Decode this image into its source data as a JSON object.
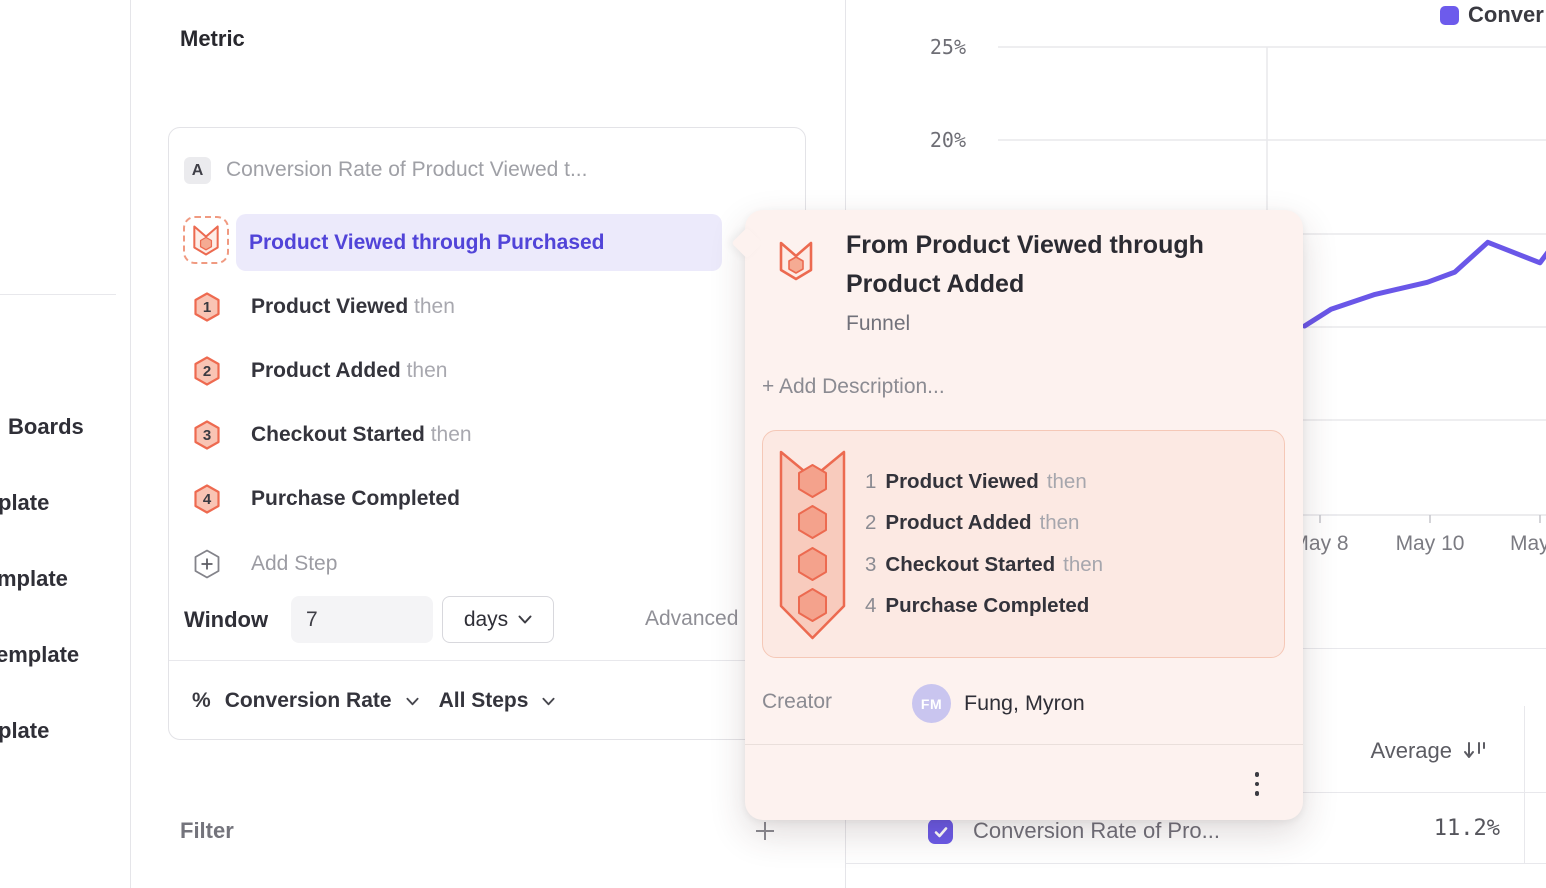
{
  "sidebar": {
    "items": [
      {
        "label": "Boards"
      },
      {
        "label": "plate"
      },
      {
        "label": "mplate"
      },
      {
        "label": "emplate"
      },
      {
        "label": "plate"
      }
    ]
  },
  "metric_panel": {
    "title": "Metric",
    "series": {
      "badge": "A",
      "name": "Conversion Rate of Product Viewed t..."
    },
    "funnel": {
      "selected_name": "Product Viewed through Purchased",
      "steps": [
        {
          "num": "1",
          "name": "Product Viewed",
          "connector": "then"
        },
        {
          "num": "2",
          "name": "Product Added",
          "connector": "then"
        },
        {
          "num": "3",
          "name": "Checkout Started",
          "connector": "then"
        },
        {
          "num": "4",
          "name": "Purchase Completed",
          "connector": ""
        }
      ],
      "add_step": "Add Step"
    },
    "window": {
      "label": "Window",
      "value": "7",
      "unit": "days"
    },
    "advanced": "Advanced",
    "measurement": {
      "prefix": "%",
      "type": "Conversion Rate",
      "scope": "All Steps"
    },
    "filter": {
      "label": "Filter"
    }
  },
  "popover": {
    "title": "From Product Viewed through Product Added",
    "type_label": "Funnel",
    "add_description": "+ Add Description...",
    "steps": [
      {
        "num": "1",
        "name": "Product Viewed",
        "connector": "then"
      },
      {
        "num": "2",
        "name": "Product Added",
        "connector": "then"
      },
      {
        "num": "3",
        "name": "Checkout Started",
        "connector": "then"
      },
      {
        "num": "4",
        "name": "Purchase Completed",
        "connector": ""
      }
    ],
    "creator": {
      "label": "Creator",
      "initials": "FM",
      "name": "Fung, Myron"
    }
  },
  "chart": {
    "legend_label": "Conver",
    "y_tick_labels": [
      "25%",
      "20%"
    ],
    "x_tick_labels": [
      "May 8",
      "May 10",
      "May"
    ]
  },
  "chart_data": {
    "type": "line",
    "title": "",
    "legend": [
      {
        "label": "Conver",
        "color": "#6d5bec",
        "truncated_by_viewport": true
      }
    ],
    "x_axis": {
      "unit": "date",
      "visible_tick_labels": [
        "May 8",
        "May 10",
        "May"
      ]
    },
    "y_axis": {
      "format": "percent",
      "visible_tick_labels": [
        "25%",
        "20%"
      ],
      "range_shown": [
        0,
        25
      ],
      "gridline_values_pct": [
        25,
        20,
        15,
        10,
        5
      ]
    },
    "grid": true,
    "legend_position": "top-right",
    "series": [
      {
        "name": "Conversion Rate of Pro...",
        "color": "#6a57e8",
        "note": "left portion of line hidden behind details popover; visible points estimated from pixels",
        "points_day_of_may_vs_pct": [
          [
            7.72,
            10.0
          ],
          [
            8.2,
            10.9
          ],
          [
            9.0,
            11.7
          ],
          [
            9.95,
            12.35
          ],
          [
            10.45,
            12.9
          ],
          [
            11.05,
            14.5
          ],
          [
            12.0,
            13.4
          ],
          [
            12.15,
            14.0
          ]
        ]
      }
    ],
    "summary": {
      "average": "11.2%"
    }
  },
  "table": {
    "columns": [
      {
        "header": "Average",
        "sort": "desc"
      }
    ],
    "rows": [
      {
        "selected": true,
        "label": "Conversion Rate of Pro...",
        "average": "11.2%"
      }
    ]
  },
  "colors": {
    "accent_purple": "#6a57e8",
    "selected_pill_bg": "#eceafb",
    "selected_pill_text": "#5144d8",
    "funnel_orange": "#ec6a50",
    "funnel_hex_fill": "#f9c4b4",
    "popover_bg": "#fdf2ef",
    "popover_card_bg": "#fce9e3",
    "popover_card_border": "#f5c8b7"
  }
}
